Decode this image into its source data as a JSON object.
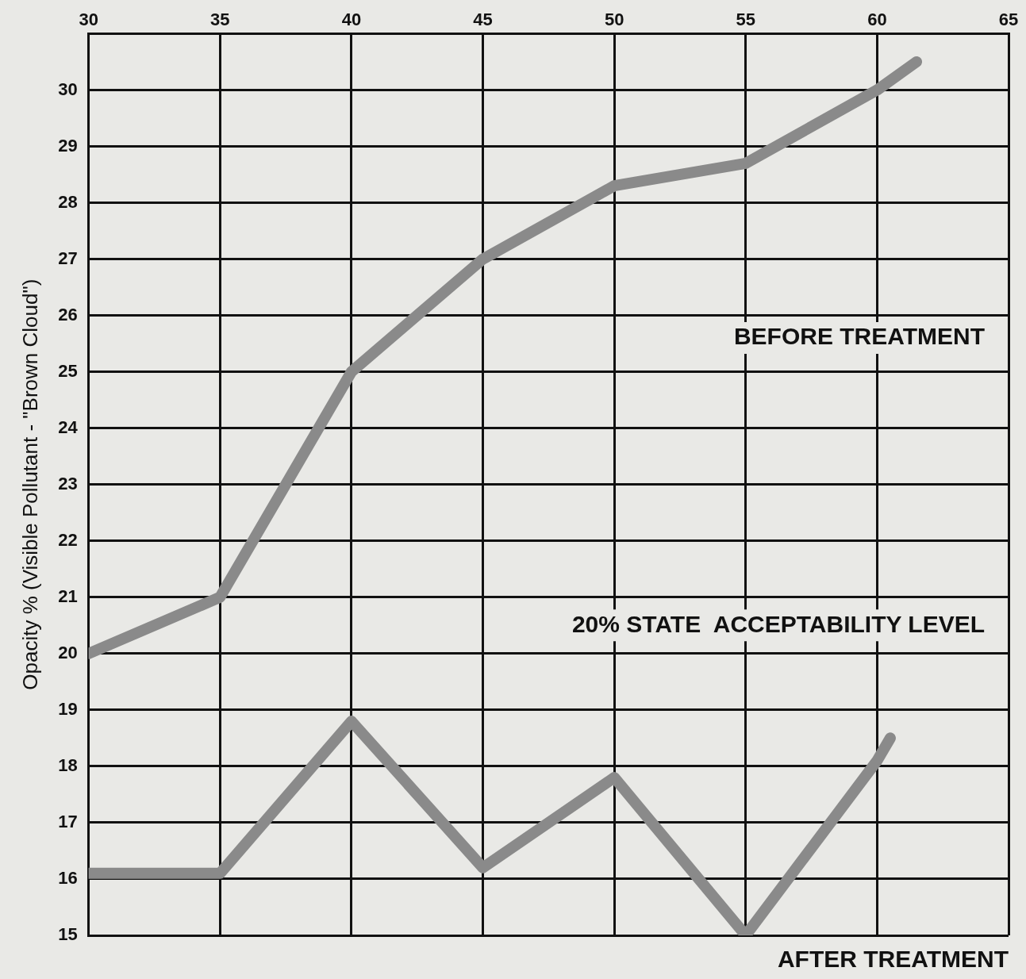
{
  "chart_data": {
    "type": "line",
    "ylabel": "Opacity % (Visible Pollutant - \"Brown Cloud\")",
    "x": [
      30,
      35,
      40,
      45,
      50,
      55,
      60,
      61.5
    ],
    "series": [
      {
        "color": "#8a8a8a",
        "values": [
          20,
          21,
          25,
          27,
          28.3,
          28.7,
          30,
          30.5
        ]
      },
      {
        "color": "#8a8a8a",
        "x": [
          30,
          35,
          40,
          45,
          50,
          55,
          60,
          60.5
        ],
        "values": [
          16.1,
          16.1,
          18.8,
          16.2,
          17.8,
          15,
          18.1,
          18.5
        ]
      }
    ],
    "xlim": [
      30,
      65
    ],
    "xticks": [
      30,
      35,
      40,
      45,
      50,
      55,
      60,
      65
    ],
    "ylim": [
      15,
      31
    ],
    "yticks": [
      15,
      16,
      17,
      18,
      19,
      20,
      21,
      22,
      23,
      24,
      25,
      26,
      27,
      28,
      29,
      30
    ],
    "annotations": [
      "BEFORE TREATMENT",
      "20% STATE  ACCEPTABILITY LEVEL",
      "AFTER TREATMENT"
    ],
    "grid": true,
    "legend": false,
    "marker": "none",
    "line_style": "solid"
  }
}
